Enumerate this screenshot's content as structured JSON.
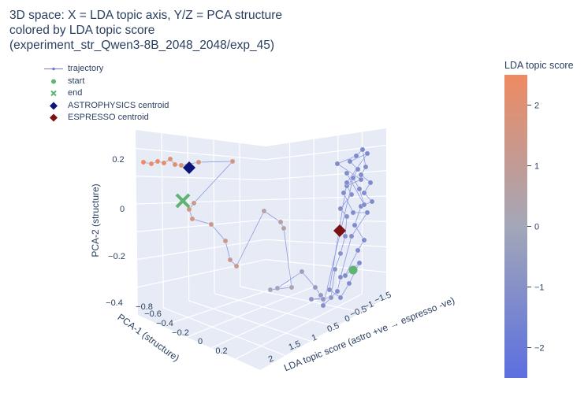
{
  "chart_data": {
    "type": "scatter3d",
    "title": [
      "3D space: X = LDA topic axis, Y/Z = PCA structure",
      "colored by LDA topic score",
      "(experiment_str_Qwen3-8B_2048_2048/exp_45)"
    ],
    "x_axis": {
      "label": "LDA topic score (astro +ve → espresso -ve)",
      "ticks": [
        "2",
        "1.5",
        "1",
        "0.5",
        "0",
        "−0.5",
        "−1",
        "−1.5"
      ]
    },
    "y_axis": {
      "label": "PCA-1 (structure)",
      "ticks": [
        "−0.8",
        "−0.6",
        "−0.4",
        "−0.2",
        "0",
        "0.2"
      ]
    },
    "z_axis": {
      "label": "PCA-2 (structure)",
      "ticks": [
        "0.2",
        "0",
        "−0.2",
        "−0.4"
      ]
    },
    "colorbar": {
      "title": "LDA topic score",
      "min": -2.5,
      "max": 2.5,
      "ticks": [
        "2",
        "1",
        "0",
        "−1",
        "−2"
      ],
      "ticks_values": [
        2,
        1,
        0,
        -1,
        -2
      ],
      "color_low": "#5b6fe0",
      "color_mid": "#a3a7b8",
      "color_high": "#ee8a62"
    },
    "legend": [
      {
        "label": "trajectory",
        "symbol": "line-dot",
        "color": "#6b7ad6"
      },
      {
        "label": "start",
        "symbol": "circle",
        "color": "#5fb472"
      },
      {
        "label": "end",
        "symbol": "x",
        "color": "#5fb472"
      },
      {
        "label": "ASTROPHYSICS centroid",
        "symbol": "diamond",
        "color": "#0b1478"
      },
      {
        "label": "ESPRESSO centroid",
        "symbol": "diamond",
        "color": "#7a1212"
      }
    ],
    "trajectory_projected": [
      {
        "s": 2.3,
        "p": [
          182,
          206
        ]
      },
      {
        "s": 2.2,
        "p": [
          192,
          208
        ]
      },
      {
        "s": 2.1,
        "p": [
          200,
          205
        ]
      },
      {
        "s": 2.0,
        "p": [
          208,
          207
        ]
      },
      {
        "s": 1.9,
        "p": [
          216,
          202
        ]
      },
      {
        "s": 1.9,
        "p": [
          222,
          209
        ]
      },
      {
        "s": 1.8,
        "p": [
          230,
          210
        ]
      },
      {
        "s": 1.6,
        "p": [
          252,
          206
        ]
      },
      {
        "s": 1.4,
        "p": [
          295,
          205
        ]
      },
      {
        "s": 1.3,
        "p": [
          246,
          258
        ]
      },
      {
        "s": 1.5,
        "p": [
          240,
          266
        ]
      },
      {
        "s": 1.5,
        "p": [
          244,
          278
        ]
      },
      {
        "s": 1.3,
        "p": [
          268,
          285
        ]
      },
      {
        "s": 1.2,
        "p": [
          286,
          306
        ]
      },
      {
        "s": 1.1,
        "p": [
          292,
          330
        ]
      },
      {
        "s": 1.2,
        "p": [
          300,
          338
        ]
      },
      {
        "s": 0.6,
        "p": [
          335,
          268
        ]
      },
      {
        "s": 0.5,
        "p": [
          356,
          282
        ]
      },
      {
        "s": 0.5,
        "p": [
          360,
          290
        ]
      },
      {
        "s": 0.1,
        "p": [
          370,
          365
        ]
      },
      {
        "s": 0.0,
        "p": [
          343,
          368
        ]
      },
      {
        "s": -0.1,
        "p": [
          352,
          366
        ]
      },
      {
        "s": -0.3,
        "p": [
          383,
          345
        ]
      },
      {
        "s": -0.5,
        "p": [
          400,
          365
        ]
      },
      {
        "s": -0.6,
        "p": [
          407,
          375
        ]
      },
      {
        "s": -0.7,
        "p": [
          410,
          380
        ]
      },
      {
        "s": -0.8,
        "p": [
          395,
          380
        ]
      },
      {
        "s": -0.8,
        "p": [
          420,
          378
        ]
      },
      {
        "s": -0.9,
        "p": [
          425,
          342
        ]
      },
      {
        "s": -1.0,
        "p": [
          432,
          322
        ]
      },
      {
        "s": -1.1,
        "p": [
          438,
          300
        ]
      },
      {
        "s": -1.0,
        "p": [
          440,
          275
        ]
      },
      {
        "s": -1.1,
        "p": [
          432,
          265
        ]
      },
      {
        "s": -1.1,
        "p": [
          446,
          247
        ]
      },
      {
        "s": -1.2,
        "p": [
          440,
          236
        ]
      },
      {
        "s": -1.2,
        "p": [
          458,
          228
        ]
      },
      {
        "s": -1.2,
        "p": [
          428,
          208
        ]
      },
      {
        "s": -1.3,
        "p": [
          452,
          198
        ]
      },
      {
        "s": -1.3,
        "p": [
          460,
          190
        ]
      },
      {
        "s": -1.2,
        "p": [
          464,
          212
        ]
      },
      {
        "s": -1.2,
        "p": [
          458,
          222
        ]
      },
      {
        "s": -1.3,
        "p": [
          470,
          232
        ]
      },
      {
        "s": -1.2,
        "p": [
          462,
          245
        ]
      },
      {
        "s": -1.2,
        "p": [
          472,
          256
        ]
      },
      {
        "s": -1.3,
        "p": [
          458,
          262
        ]
      },
      {
        "s": -1.2,
        "p": [
          450,
          286
        ]
      },
      {
        "s": -1.3,
        "p": [
          462,
          305
        ]
      },
      {
        "s": -1.2,
        "p": [
          454,
          318
        ]
      },
      {
        "s": -1.2,
        "p": [
          438,
          350
        ]
      },
      {
        "s": -1.3,
        "p": [
          456,
          334
        ]
      },
      {
        "s": -1.2,
        "p": [
          443,
          360
        ]
      },
      {
        "s": -1.1,
        "p": [
          432,
          378
        ]
      },
      {
        "s": -1.1,
        "p": [
          418,
          368
        ]
      },
      {
        "s": -1.2,
        "p": [
          440,
          232
        ]
      },
      {
        "s": -1.3,
        "p": [
          466,
          195
        ]
      },
      {
        "s": -1.2,
        "p": [
          444,
          205
        ]
      },
      {
        "s": -1.3,
        "p": [
          454,
          215
        ]
      },
      {
        "s": -1.2,
        "p": [
          436,
          245
        ]
      },
      {
        "s": -1.2,
        "p": [
          448,
          270
        ]
      },
      {
        "s": -1.3,
        "p": [
          466,
          270
        ]
      },
      {
        "s": -1.1,
        "p": [
          446,
          300
        ]
      },
      {
        "s": -1.2,
        "p": [
          432,
          352
        ]
      },
      {
        "s": -1.2,
        "p": [
          428,
          370
        ]
      },
      {
        "s": -1.1,
        "p": [
          410,
          388
        ]
      },
      {
        "s": -1.2,
        "p": [
          448,
          226
        ]
      },
      {
        "s": -1.3,
        "p": [
          456,
          240
        ]
      },
      {
        "s": -1.2,
        "p": [
          462,
          260
        ]
      },
      {
        "s": -1.2,
        "p": [
          440,
          220
        ]
      }
    ],
    "start_projected": [
      448,
      343
    ],
    "end_projected": [
      232,
      255
    ],
    "astro_centroid_projected": [
      240,
      213
    ],
    "espresso_centroid_projected": [
      431,
      293
    ]
  }
}
